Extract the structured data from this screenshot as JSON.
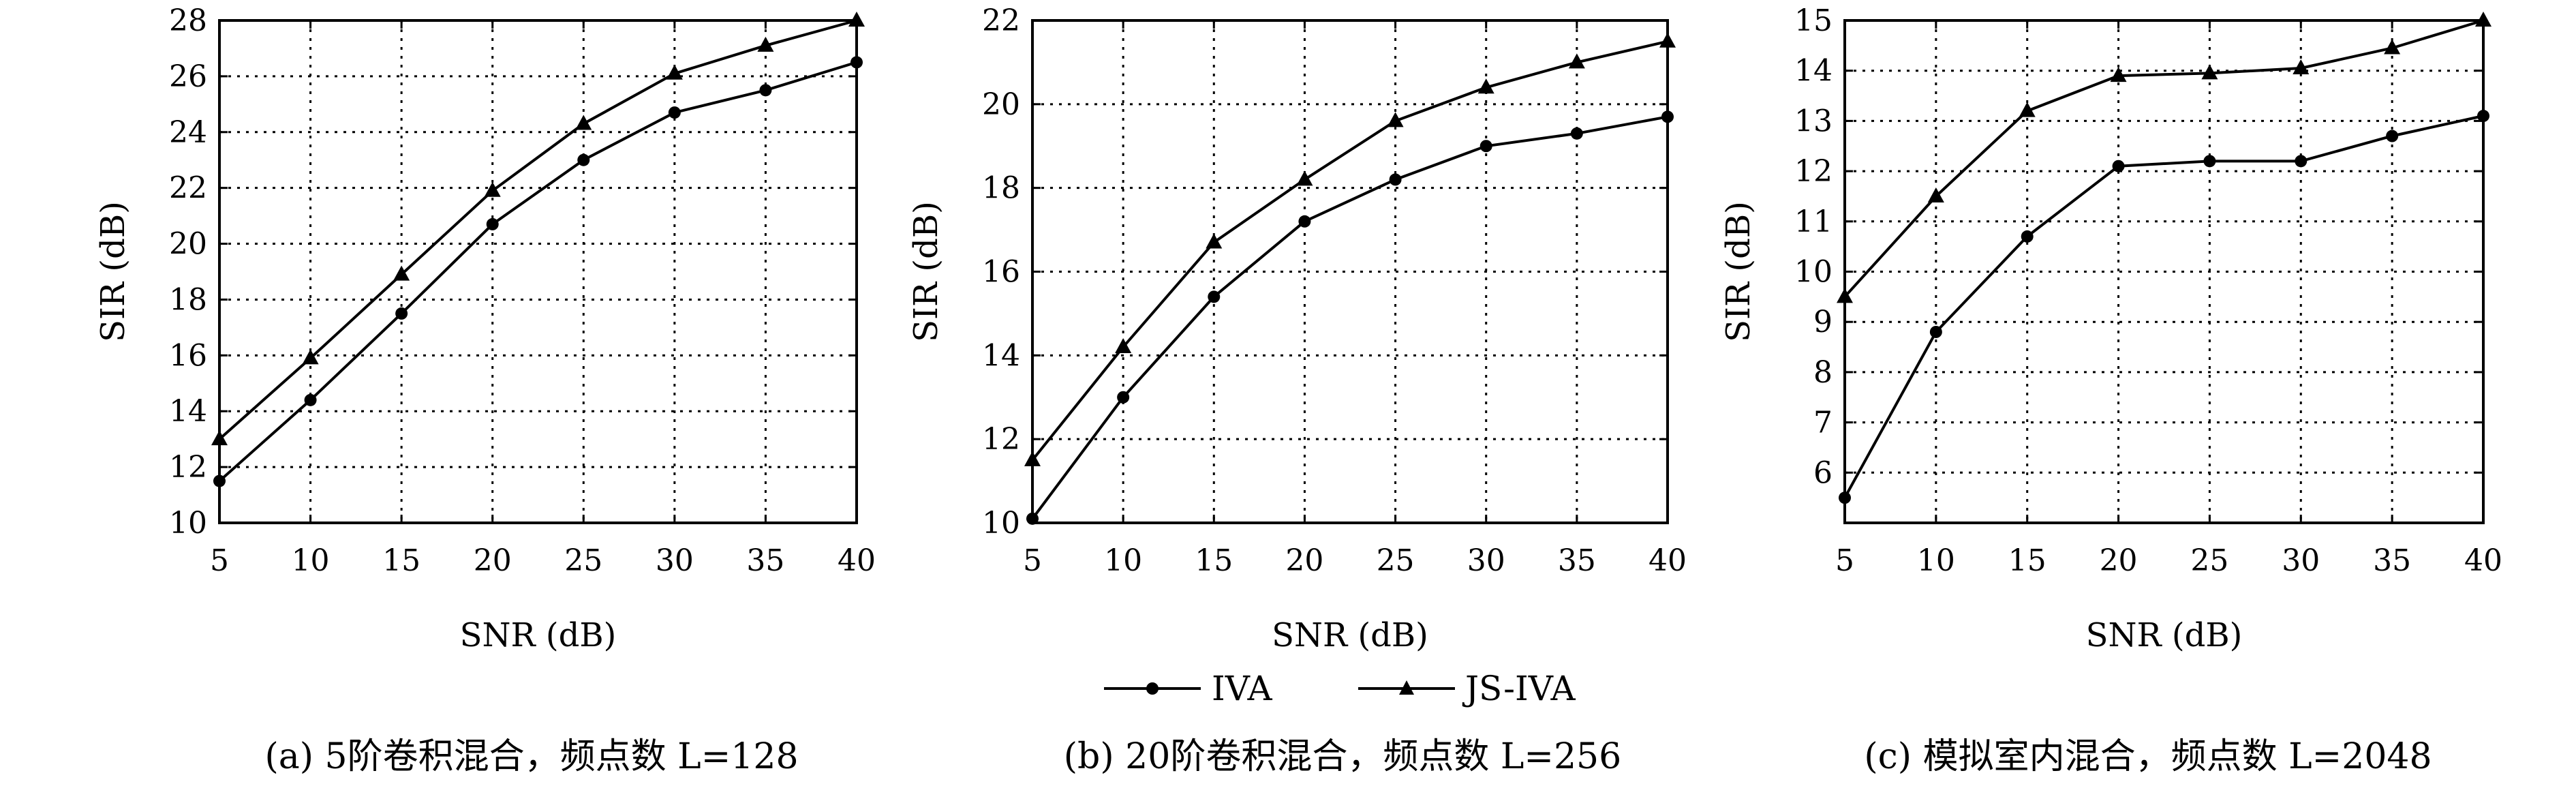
{
  "chart_data": [
    {
      "type": "line",
      "caption": "(a) 5阶卷积混合，频点数 L=128",
      "xlabel": "SNR (dB)",
      "ylabel": "SIR (dB)",
      "xlim": [
        5,
        40
      ],
      "ylim": [
        10,
        28
      ],
      "xticks": [
        5,
        10,
        15,
        20,
        25,
        30,
        35,
        40
      ],
      "yticks": [
        10,
        12,
        14,
        16,
        18,
        20,
        22,
        24,
        26,
        28
      ],
      "grid": true,
      "x": [
        5,
        10,
        15,
        20,
        25,
        30,
        35,
        40
      ],
      "series": [
        {
          "name": "IVA",
          "marker": "circle",
          "values": [
            11.5,
            14.4,
            17.5,
            20.7,
            23.0,
            24.7,
            25.5,
            26.5
          ]
        },
        {
          "name": "JS-IVA",
          "marker": "triangle",
          "values": [
            13.0,
            15.9,
            18.9,
            21.9,
            24.3,
            26.1,
            27.1,
            28.0
          ]
        }
      ]
    },
    {
      "type": "line",
      "caption": "(b) 20阶卷积混合，频点数 L=256",
      "xlabel": "SNR (dB)",
      "ylabel": "SIR (dB)",
      "xlim": [
        5,
        40
      ],
      "ylim": [
        10,
        22
      ],
      "xticks": [
        5,
        10,
        15,
        20,
        25,
        30,
        35,
        40
      ],
      "yticks": [
        10,
        12,
        14,
        16,
        18,
        20,
        22
      ],
      "grid": true,
      "x": [
        5,
        10,
        15,
        20,
        25,
        30,
        35,
        40
      ],
      "series": [
        {
          "name": "IVA",
          "marker": "circle",
          "values": [
            10.1,
            13.0,
            15.4,
            17.2,
            18.2,
            19.0,
            19.3,
            19.7
          ]
        },
        {
          "name": "JS-IVA",
          "marker": "triangle",
          "values": [
            11.5,
            14.2,
            16.7,
            18.2,
            19.6,
            20.4,
            21.0,
            21.5
          ]
        }
      ]
    },
    {
      "type": "line",
      "caption": "(c) 模拟室内混合，频点数 L=2048",
      "xlabel": "SNR (dB)",
      "ylabel": "SIR (dB)",
      "xlim": [
        5,
        40
      ],
      "ylim": [
        5,
        15
      ],
      "xticks": [
        5,
        10,
        15,
        20,
        25,
        30,
        35,
        40
      ],
      "yticks": [
        6,
        7,
        8,
        9,
        10,
        11,
        12,
        13,
        14,
        15
      ],
      "grid": true,
      "x": [
        5,
        10,
        15,
        20,
        25,
        30,
        35,
        40
      ],
      "series": [
        {
          "name": "IVA",
          "marker": "circle",
          "values": [
            5.5,
            8.8,
            10.7,
            12.1,
            12.2,
            12.2,
            12.7,
            13.1
          ]
        },
        {
          "name": "JS-IVA",
          "marker": "triangle",
          "values": [
            9.5,
            11.5,
            13.2,
            13.9,
            13.95,
            14.05,
            14.45,
            15.0
          ]
        }
      ]
    }
  ],
  "legend": {
    "placement": "bottom-center",
    "entries": [
      {
        "label": "IVA",
        "marker": "circle"
      },
      {
        "label": "JS-IVA",
        "marker": "triangle"
      }
    ]
  }
}
